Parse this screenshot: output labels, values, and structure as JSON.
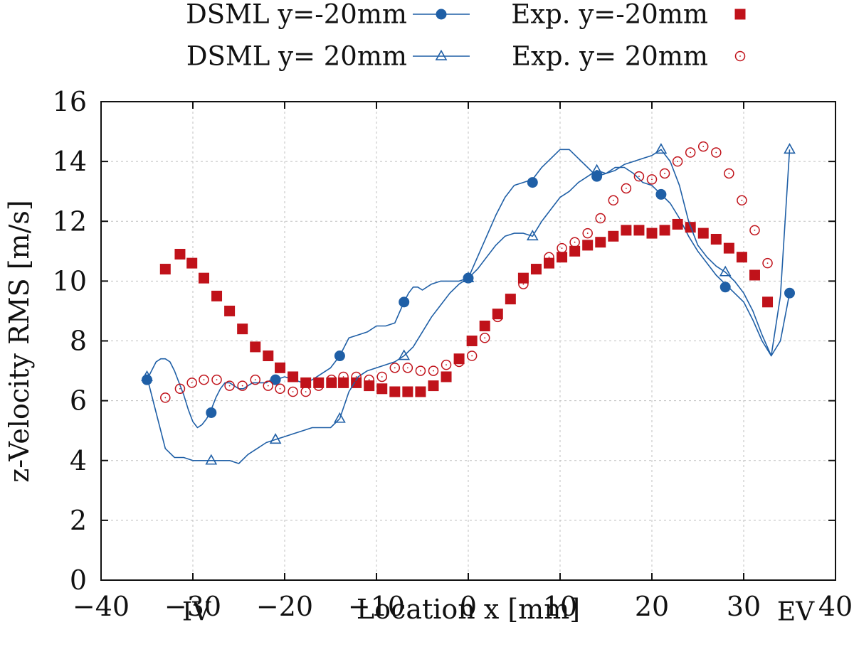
{
  "chart_data": {
    "type": "line",
    "xlabel": "Location x [mm]",
    "ylabel": "z-Velocity RMS [m/s]",
    "xlim": [
      -40,
      40
    ],
    "ylim": [
      0,
      16
    ],
    "grid": true,
    "xticks": [
      -40,
      -30,
      -20,
      -10,
      0,
      10,
      20,
      30,
      40
    ],
    "xtick_labels": [
      "−40",
      "−30",
      "−20",
      "−10",
      "0",
      "10",
      "20",
      "30",
      "40"
    ],
    "yticks": [
      0,
      2,
      4,
      6,
      8,
      10,
      12,
      14,
      16
    ],
    "ytick_labels": [
      "0",
      "2",
      "4",
      "6",
      "8",
      "10",
      "12",
      "14",
      "16"
    ],
    "legend_position": "top, outside",
    "annotations": [
      {
        "text": "IV",
        "x": -30
      },
      {
        "text": "EV",
        "x": 32
      }
    ],
    "series": [
      {
        "name": "DSML y=-20mm",
        "style": "line-marker",
        "marker": "filled-circle",
        "color": "#1f5fa6",
        "line_x": [
          -35,
          -34.5,
          -34,
          -33.5,
          -33,
          -32.5,
          -32,
          -31.5,
          -31,
          -30.5,
          -30,
          -29.5,
          -29,
          -28.5,
          -28,
          -27.5,
          -27,
          -26.5,
          -26,
          -25.5,
          -25,
          -24.5,
          -24,
          -23.5,
          -23,
          -22.5,
          -22,
          -21.5,
          -21,
          -20,
          -19,
          -18,
          -17,
          -16,
          -15,
          -14,
          -13,
          -12,
          -11,
          -10,
          -9,
          -8,
          -7,
          -6.5,
          -6,
          -5.5,
          -5,
          -4,
          -3,
          -2,
          -1,
          0,
          1,
          2,
          3,
          4,
          5,
          6,
          7,
          8,
          9,
          10,
          11,
          12,
          13,
          14,
          15,
          16,
          17,
          18,
          19,
          20,
          21,
          22,
          23,
          24,
          25,
          26,
          27,
          28,
          29,
          30,
          31,
          32,
          33,
          34,
          35
        ],
        "line_y": [
          6.7,
          7.0,
          7.3,
          7.4,
          7.4,
          7.3,
          7.0,
          6.6,
          6.2,
          5.7,
          5.3,
          5.1,
          5.2,
          5.4,
          5.7,
          6.1,
          6.4,
          6.6,
          6.6,
          6.5,
          6.4,
          6.4,
          6.5,
          6.6,
          6.6,
          6.6,
          6.6,
          6.7,
          6.7,
          6.8,
          6.7,
          6.6,
          6.7,
          6.9,
          7.1,
          7.5,
          8.1,
          8.2,
          8.3,
          8.5,
          8.5,
          8.6,
          9.3,
          9.6,
          9.8,
          9.8,
          9.7,
          9.9,
          10.0,
          10.0,
          10.0,
          10.1,
          10.8,
          11.5,
          12.2,
          12.8,
          13.2,
          13.3,
          13.4,
          13.8,
          14.1,
          14.4,
          14.4,
          14.1,
          13.8,
          13.5,
          13.6,
          13.8,
          13.8,
          13.6,
          13.3,
          13.2,
          12.9,
          12.6,
          12.1,
          11.5,
          11.0,
          10.6,
          10.2,
          9.9,
          9.6,
          9.3,
          8.7,
          8.0,
          7.5,
          8.0,
          9.6
        ],
        "marker_x": [
          -35,
          -28,
          -21,
          -14,
          -7,
          0,
          7,
          14,
          21,
          28,
          35
        ],
        "marker_y": [
          6.7,
          5.6,
          6.7,
          7.5,
          9.3,
          10.1,
          13.3,
          13.5,
          12.9,
          9.8,
          9.6
        ]
      },
      {
        "name": "Exp. y=-20mm",
        "style": "marker",
        "marker": "filled-square",
        "color": "#c0121a",
        "x": [
          -33,
          -31.4,
          -30.1,
          -28.8,
          -27.4,
          -26,
          -24.6,
          -23.2,
          -21.8,
          -20.5,
          -19.1,
          -17.7,
          -16.3,
          -14.9,
          -13.6,
          -12.2,
          -10.8,
          -9.4,
          -8,
          -6.6,
          -5.2,
          -3.8,
          -2.4,
          -1,
          0.4,
          1.8,
          3.2,
          4.6,
          6,
          7.4,
          8.8,
          10.2,
          11.6,
          13,
          14.4,
          15.8,
          17.2,
          18.6,
          20,
          21.4,
          22.8,
          24.2,
          25.6,
          27,
          28.4,
          29.8,
          31.2,
          32.6
        ],
        "y": [
          10.4,
          10.9,
          10.6,
          10.1,
          9.5,
          9.0,
          8.4,
          7.8,
          7.5,
          7.1,
          6.8,
          6.6,
          6.6,
          6.6,
          6.6,
          6.6,
          6.5,
          6.4,
          6.3,
          6.3,
          6.3,
          6.5,
          6.8,
          7.4,
          8.0,
          8.5,
          8.9,
          9.4,
          10.1,
          10.4,
          10.6,
          10.8,
          11.0,
          11.2,
          11.3,
          11.5,
          11.7,
          11.7,
          11.6,
          11.7,
          11.9,
          11.8,
          11.6,
          11.4,
          11.1,
          10.8,
          10.2,
          9.3
        ]
      },
      {
        "name": "DSML y= 20mm",
        "style": "line-marker",
        "marker": "open-triangle",
        "color": "#1f5fa6",
        "line_x": [
          -35,
          -34,
          -33,
          -32,
          -31,
          -30,
          -29,
          -28,
          -27,
          -26,
          -25,
          -24,
          -23,
          -22,
          -21,
          -20,
          -19,
          -18,
          -17,
          -16,
          -15,
          -14,
          -13,
          -12,
          -11,
          -10,
          -9,
          -8,
          -7,
          -6,
          -5,
          -4,
          -3,
          -2,
          -1,
          0,
          1,
          2,
          3,
          4,
          5,
          6,
          7,
          8,
          9,
          10,
          11,
          12,
          13,
          14,
          15,
          16,
          17,
          18,
          19,
          20,
          21,
          22,
          23,
          24,
          25,
          26,
          27,
          28,
          29,
          30,
          31,
          32,
          33,
          34,
          35
        ],
        "line_y": [
          6.8,
          5.6,
          4.4,
          4.1,
          4.1,
          4.0,
          4.0,
          4.0,
          4.0,
          4.0,
          3.9,
          4.2,
          4.4,
          4.6,
          4.7,
          4.8,
          4.9,
          5.0,
          5.1,
          5.1,
          5.1,
          5.4,
          6.3,
          6.8,
          7.0,
          7.1,
          7.2,
          7.3,
          7.5,
          7.8,
          8.3,
          8.8,
          9.2,
          9.6,
          9.9,
          10.1,
          10.4,
          10.8,
          11.2,
          11.5,
          11.6,
          11.6,
          11.5,
          12.0,
          12.4,
          12.8,
          13.0,
          13.3,
          13.5,
          13.7,
          13.6,
          13.7,
          13.9,
          14.0,
          14.1,
          14.2,
          14.4,
          14.0,
          13.2,
          12.0,
          11.2,
          10.8,
          10.5,
          10.3,
          10.0,
          9.6,
          9.0,
          8.2,
          7.5,
          9.5,
          14.4
        ],
        "marker_x": [
          -35,
          -28,
          -21,
          -14,
          -7,
          0,
          7,
          14,
          21,
          28,
          35
        ],
        "marker_y": [
          6.8,
          4.0,
          4.7,
          5.4,
          7.5,
          10.1,
          11.5,
          13.7,
          14.4,
          10.3,
          14.4
        ]
      },
      {
        "name": "Exp. y= 20mm",
        "style": "marker",
        "marker": "open-circle",
        "color": "#c0121a",
        "x": [
          -33,
          -31.4,
          -30.1,
          -28.8,
          -27.4,
          -26,
          -24.6,
          -23.2,
          -21.8,
          -20.5,
          -19.1,
          -17.7,
          -16.3,
          -14.9,
          -13.6,
          -12.2,
          -10.8,
          -9.4,
          -8,
          -6.6,
          -5.2,
          -3.8,
          -2.4,
          -1,
          0.4,
          1.8,
          3.2,
          4.6,
          6,
          7.4,
          8.8,
          10.2,
          11.6,
          13,
          14.4,
          15.8,
          17.2,
          18.6,
          20,
          21.4,
          22.8,
          24.2,
          25.6,
          27,
          28.4,
          29.8,
          31.2,
          32.6
        ],
        "y": [
          6.1,
          6.4,
          6.6,
          6.7,
          6.7,
          6.5,
          6.5,
          6.7,
          6.5,
          6.4,
          6.3,
          6.3,
          6.5,
          6.7,
          6.8,
          6.8,
          6.7,
          6.8,
          7.1,
          7.1,
          7.0,
          7.0,
          7.2,
          7.3,
          7.5,
          8.1,
          8.8,
          9.4,
          9.9,
          10.4,
          10.8,
          11.1,
          11.3,
          11.6,
          12.1,
          12.7,
          13.1,
          13.5,
          13.4,
          13.6,
          14.0,
          14.3,
          14.5,
          14.3,
          13.6,
          12.7,
          11.7,
          10.6
        ]
      }
    ]
  }
}
